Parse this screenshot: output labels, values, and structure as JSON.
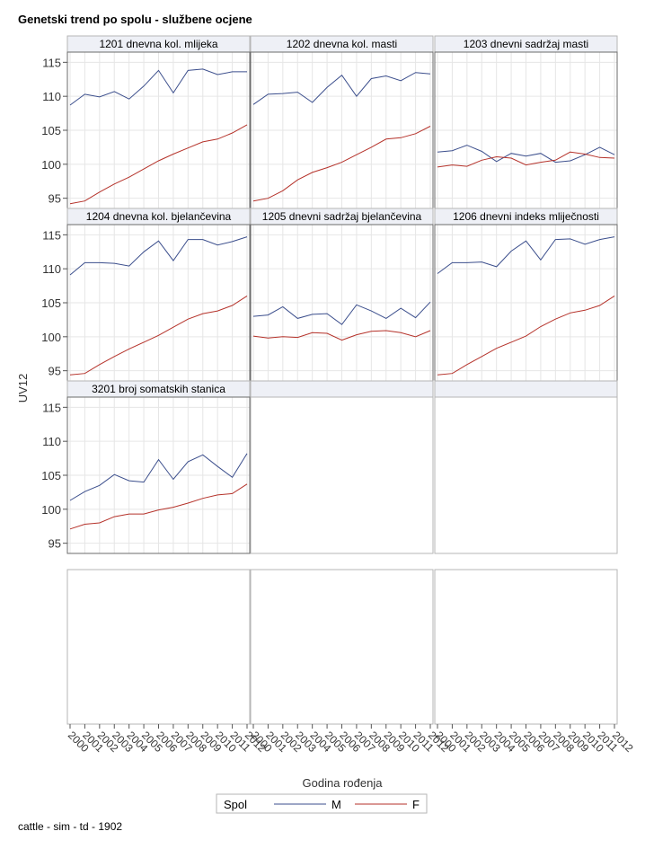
{
  "page": {
    "title": "Genetski trend po spolu - službene ocjene",
    "footer": "cattle - sim - td - 1902"
  },
  "chart_data": {
    "type": "line",
    "ylabel": "UV12",
    "xlabel": "Godina rođenja",
    "x": [
      "2000",
      "2001",
      "2002",
      "2003",
      "2004",
      "2005",
      "2006",
      "2007",
      "2008",
      "2009",
      "2010",
      "2011",
      "2012"
    ],
    "ylim": [
      93.5,
      116.5
    ],
    "yticks": [
      95,
      100,
      105,
      110,
      115
    ],
    "grid": true,
    "legend": {
      "title": "Spol",
      "position": "bottom",
      "entries": [
        {
          "name": "M",
          "color": "#3b4e8c"
        },
        {
          "name": "F",
          "color": "#b5322a"
        }
      ]
    },
    "panels": [
      {
        "title": "1201 dnevna kol. mlijeka",
        "series": [
          {
            "name": "M",
            "values": [
              108.7,
              110.3,
              109.9,
              110.7,
              109.6,
              111.5,
              113.8,
              110.5,
              113.8,
              114.0,
              113.2,
              113.6,
              113.6
            ]
          },
          {
            "name": "F",
            "values": [
              94.2,
              94.6,
              95.9,
              97.1,
              98.1,
              99.3,
              100.5,
              101.5,
              102.4,
              103.3,
              103.7,
              104.6,
              105.8
            ]
          }
        ]
      },
      {
        "title": "1202 dnevna kol. masti",
        "series": [
          {
            "name": "M",
            "values": [
              108.8,
              110.3,
              110.4,
              110.6,
              109.1,
              111.3,
              113.1,
              110.0,
              112.6,
              113.0,
              112.3,
              113.5,
              113.3
            ]
          },
          {
            "name": "F",
            "values": [
              94.6,
              95.0,
              96.1,
              97.7,
              98.8,
              99.5,
              100.3,
              101.4,
              102.5,
              103.7,
              103.9,
              104.5,
              105.6
            ]
          }
        ]
      },
      {
        "title": "1203 dnevni sadržaj masti",
        "series": [
          {
            "name": "M",
            "values": [
              101.8,
              102.0,
              102.8,
              101.9,
              100.4,
              101.6,
              101.2,
              101.6,
              100.3,
              100.5,
              101.4,
              102.5,
              101.4
            ]
          },
          {
            "name": "F",
            "values": [
              99.6,
              99.9,
              99.7,
              100.6,
              101.1,
              100.9,
              99.9,
              100.3,
              100.6,
              101.8,
              101.5,
              101.0,
              100.9
            ]
          }
        ]
      },
      {
        "title": "1204 dnevna kol. bjelančevina",
        "series": [
          {
            "name": "M",
            "values": [
              109.1,
              110.9,
              110.9,
              110.8,
              110.4,
              112.5,
              114.1,
              111.2,
              114.3,
              114.3,
              113.5,
              114.0,
              114.7
            ]
          },
          {
            "name": "F",
            "values": [
              94.4,
              94.6,
              95.9,
              97.1,
              98.2,
              99.2,
              100.2,
              101.4,
              102.6,
              103.4,
              103.8,
              104.6,
              106.0
            ]
          }
        ]
      },
      {
        "title": "1205 dnevni sadržaj bjelančevina",
        "series": [
          {
            "name": "M",
            "values": [
              103.0,
              103.2,
              104.4,
              102.7,
              103.3,
              103.4,
              101.8,
              104.7,
              103.8,
              102.7,
              104.2,
              102.8,
              105.1
            ]
          },
          {
            "name": "F",
            "values": [
              100.1,
              99.8,
              100.0,
              99.9,
              100.6,
              100.5,
              99.5,
              100.3,
              100.8,
              100.9,
              100.6,
              100.0,
              100.9
            ]
          }
        ]
      },
      {
        "title": "1206 dnevni indeks mliječnosti",
        "series": [
          {
            "name": "M",
            "values": [
              109.3,
              110.9,
              110.9,
              111.0,
              110.3,
              112.6,
              114.1,
              111.3,
              114.3,
              114.4,
              113.6,
              114.3,
              114.7
            ]
          },
          {
            "name": "F",
            "values": [
              94.4,
              94.6,
              95.9,
              97.1,
              98.3,
              99.2,
              100.1,
              101.5,
              102.6,
              103.5,
              103.9,
              104.6,
              106.0
            ]
          }
        ]
      },
      {
        "title": "3201 broj somatskih stanica",
        "series": [
          {
            "name": "M",
            "values": [
              101.3,
              102.6,
              103.5,
              105.1,
              104.2,
              104.0,
              107.3,
              104.4,
              107.0,
              108.0,
              106.3,
              104.7,
              108.2
            ]
          },
          {
            "name": "F",
            "values": [
              97.1,
              97.8,
              98.0,
              98.9,
              99.3,
              99.3,
              99.9,
              100.3,
              100.9,
              101.6,
              102.1,
              102.3,
              103.7
            ]
          }
        ]
      }
    ]
  }
}
